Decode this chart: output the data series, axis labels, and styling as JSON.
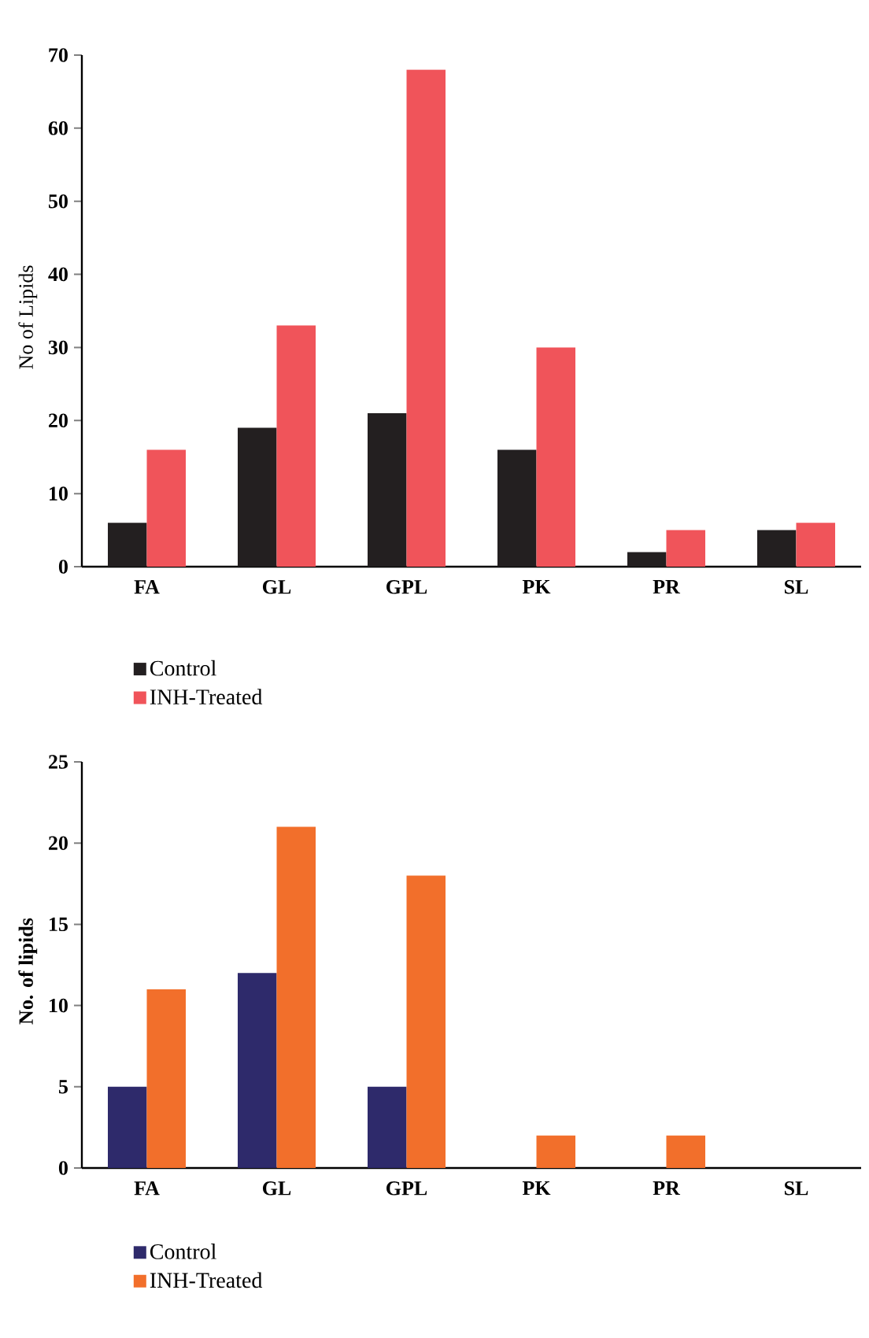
{
  "chart_data": [
    {
      "type": "bar",
      "ylabel": "No of Lipids",
      "categories": [
        "FA",
        "GL",
        "GPL",
        "PK",
        "PR",
        "SL"
      ],
      "series": [
        {
          "name": "Control",
          "color": "#231f20",
          "values": [
            6,
            19,
            21,
            16,
            2,
            5
          ]
        },
        {
          "name": "INH-Treated",
          "color": "#f0545a",
          "values": [
            16,
            33,
            68,
            30,
            5,
            6
          ]
        }
      ],
      "ylim": [
        0,
        70
      ],
      "yticks": [
        0,
        10,
        20,
        30,
        40,
        50,
        60,
        70
      ],
      "legend": "bottom left",
      "grid": false
    },
    {
      "type": "bar",
      "ylabel": "No. of lipids",
      "categories": [
        "FA",
        "GL",
        "GPL",
        "PK",
        "PR",
        "SL"
      ],
      "series": [
        {
          "name": "Control",
          "color": "#2e2a6b",
          "values": [
            5,
            12,
            5,
            0,
            0,
            0
          ]
        },
        {
          "name": "INH-Treated",
          "color": "#f26f2b",
          "values": [
            11,
            21,
            18,
            2,
            2,
            0
          ]
        }
      ],
      "ylim": [
        0,
        25
      ],
      "yticks": [
        0,
        5,
        10,
        15,
        20,
        25
      ],
      "legend": "bottom left",
      "grid": false
    }
  ]
}
